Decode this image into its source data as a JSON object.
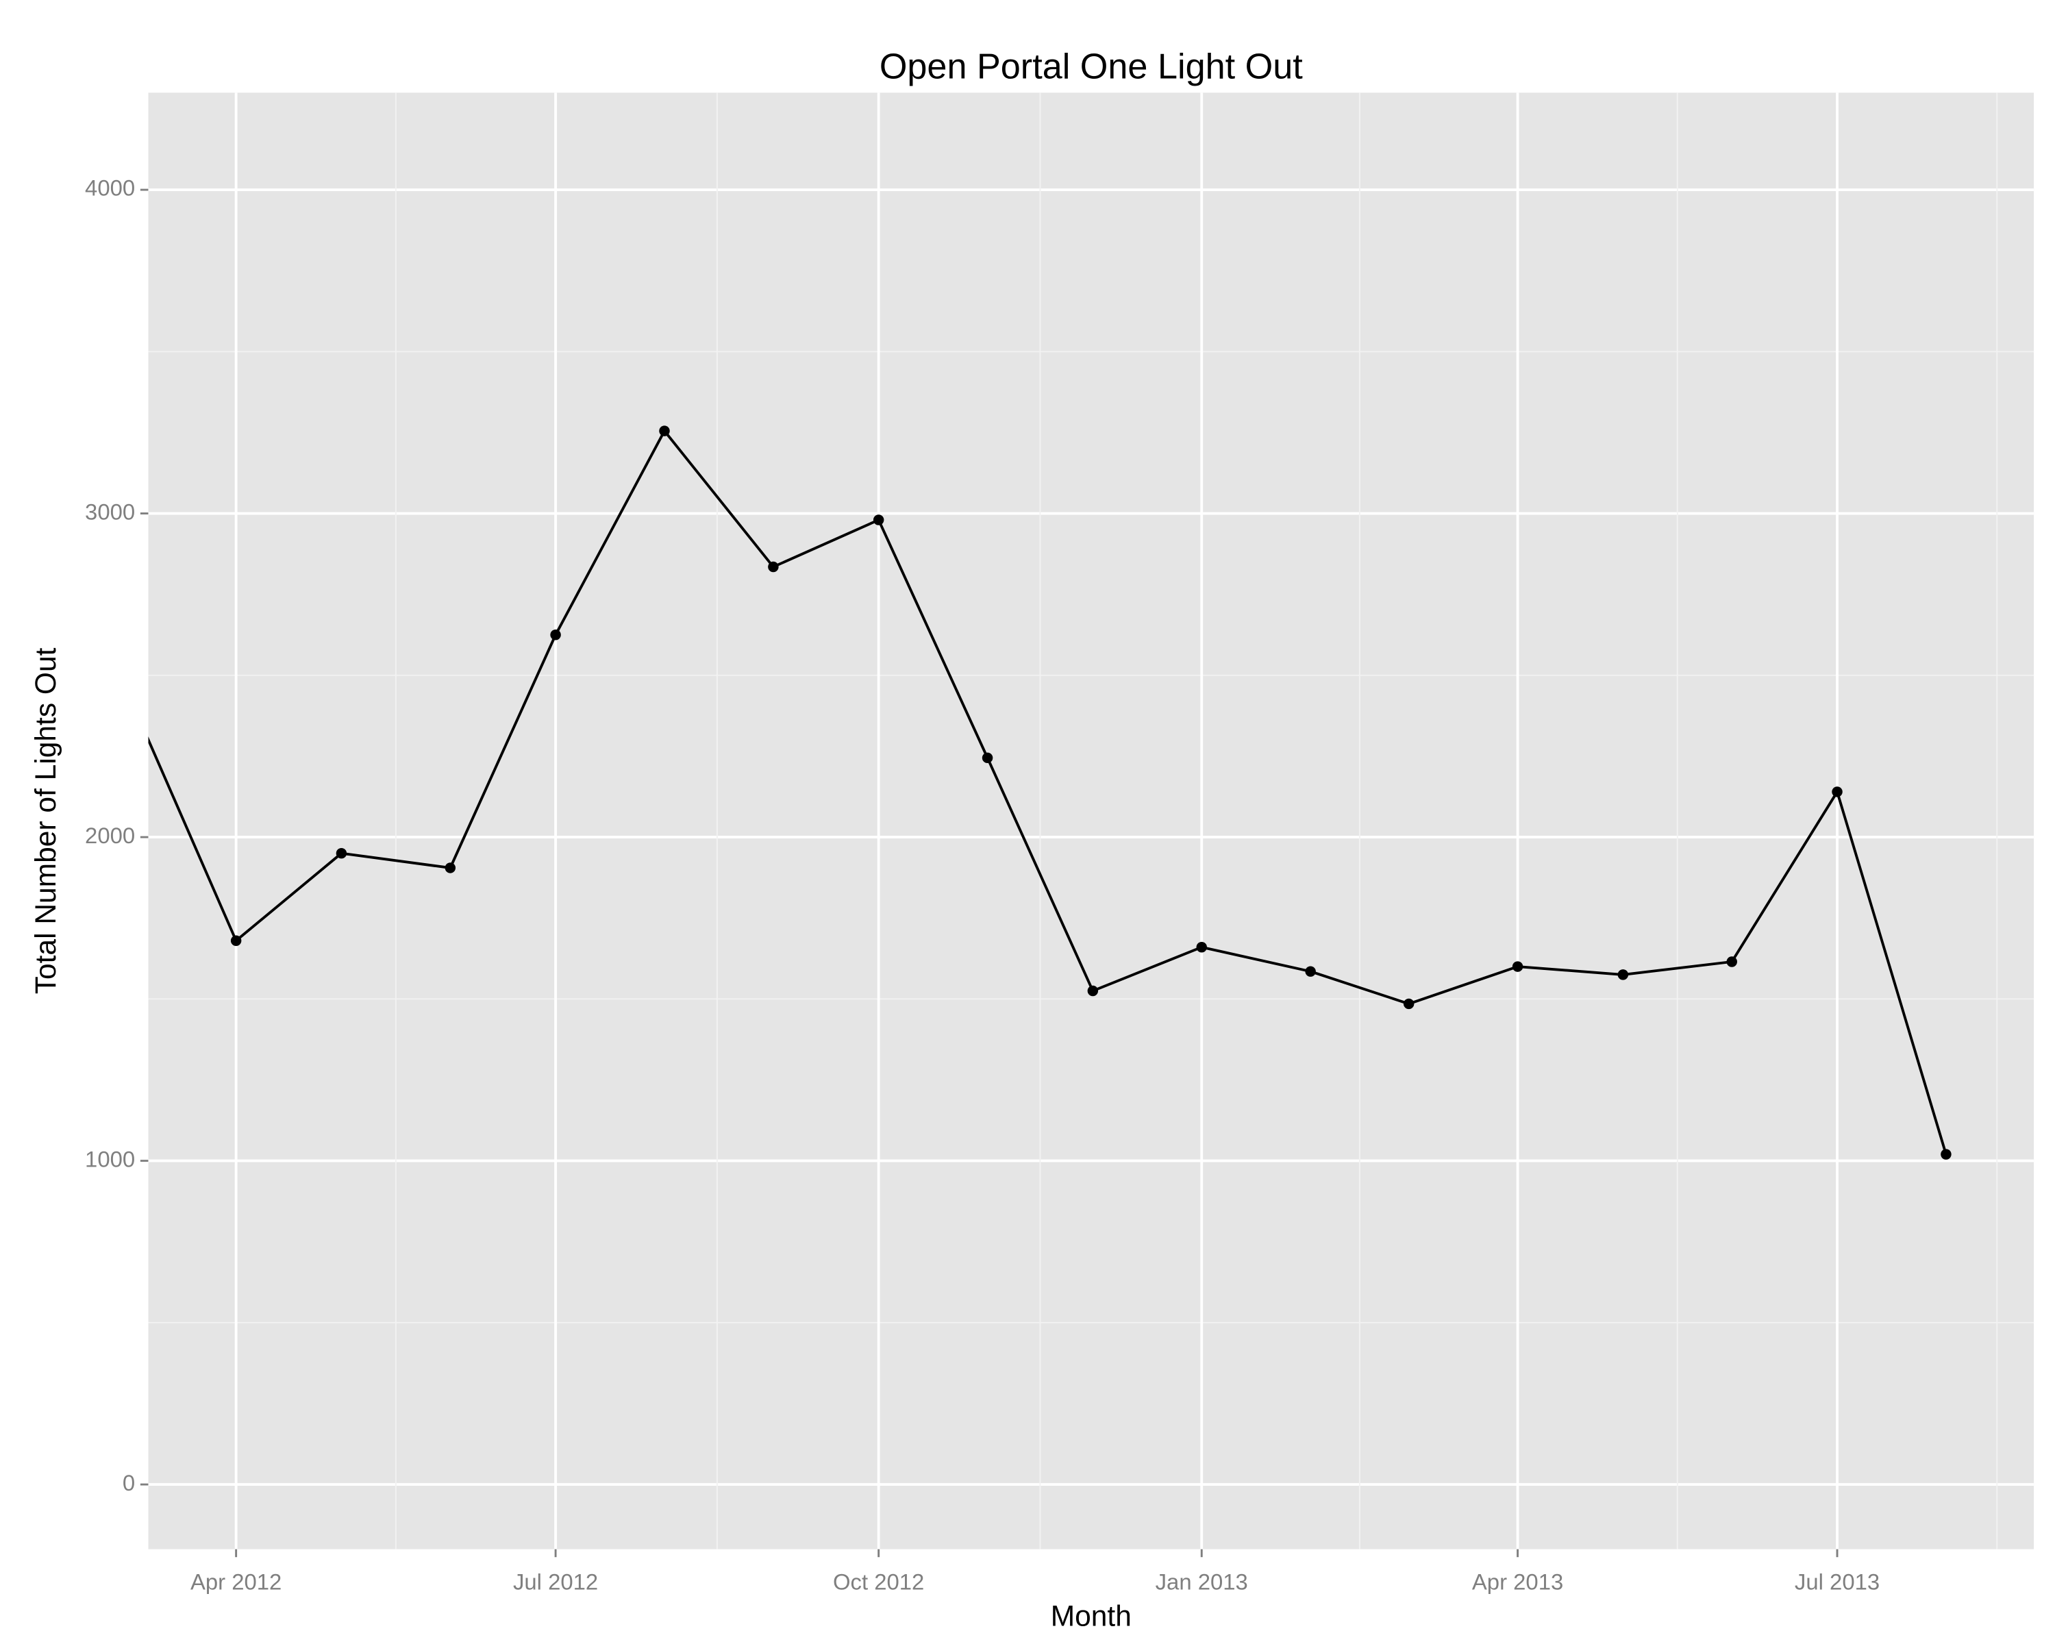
{
  "chart_data": {
    "type": "line",
    "title": "Open Portal One Light Out",
    "x_label": "Month",
    "y_label": "Total Number of Lights Out",
    "x": [
      "2012-03",
      "2012-04",
      "2012-05",
      "2012-06",
      "2012-07",
      "2012-08",
      "2012-09",
      "2012-10",
      "2012-11",
      "2012-12",
      "2013-01",
      "2013-02",
      "2013-03",
      "2013-04",
      "2013-05",
      "2013-06",
      "2013-07",
      "2013-08"
    ],
    "series": [
      {
        "name": "Lights Out",
        "color": "#000000",
        "values": [
          2450,
          1680,
          1950,
          1905,
          2625,
          3255,
          2835,
          2980,
          2245,
          1525,
          1660,
          1585,
          1485,
          1600,
          1575,
          1615,
          2140,
          1020
        ]
      }
    ],
    "xlim": [
      "2012-03-07",
      "2013-08-26"
    ],
    "xticks": [
      {
        "value": "2012-04-01",
        "label": "Apr 2012"
      },
      {
        "value": "2012-07-01",
        "label": "Jul 2012"
      },
      {
        "value": "2012-10-01",
        "label": "Oct 2012"
      },
      {
        "value": "2013-01-01",
        "label": "Jan 2013"
      },
      {
        "value": "2013-04-01",
        "label": "Apr 2013"
      },
      {
        "value": "2013-07-01",
        "label": "Jul 2013"
      }
    ],
    "ylim": [
      -200,
      4300
    ],
    "yticks": [
      0,
      1000,
      2000,
      3000,
      4000
    ],
    "grid": true,
    "background": "#e5e5e5"
  }
}
